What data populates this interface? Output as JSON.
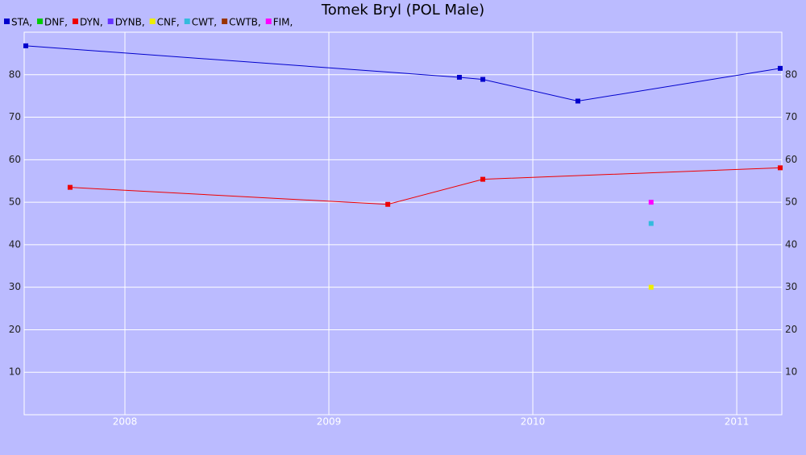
{
  "chart_data": {
    "type": "line",
    "title": "Tomek Bryl (POL Male)",
    "xlim": [
      2007.506,
      2011.221
    ],
    "xticks": [
      2008,
      2009,
      2010,
      2011
    ],
    "ylim": [
      0,
      90
    ],
    "yticks": [
      10,
      20,
      30,
      40,
      50,
      60,
      70,
      80
    ],
    "grid": true,
    "series": [
      {
        "name": "STA,",
        "color": "#0000cc",
        "x": [
          2007.514,
          2009.64,
          2009.755,
          2010.221,
          2011.213
        ],
        "values": [
          86.8,
          79.4,
          78.9,
          73.8,
          81.5
        ]
      },
      {
        "name": "DNF,",
        "color": "#00cc00",
        "x": [],
        "values": []
      },
      {
        "name": "DYN,",
        "color": "#ee0000",
        "x": [
          2007.731,
          2009.289,
          2009.755,
          2011.213
        ],
        "values": [
          53.5,
          49.5,
          55.4,
          58.1
        ]
      },
      {
        "name": "DYNB,",
        "color": "#6633ff",
        "x": [],
        "values": []
      },
      {
        "name": "CNF,",
        "color": "#eeee00",
        "x": [
          2010.58
        ],
        "values": [
          30
        ]
      },
      {
        "name": "CWT,",
        "color": "#33bbdd",
        "x": [
          2010.58
        ],
        "values": [
          45
        ]
      },
      {
        "name": "CWTB,",
        "color": "#993300",
        "x": [],
        "values": []
      },
      {
        "name": "FIM,",
        "color": "#ff00ff",
        "x": [
          2010.58
        ],
        "values": [
          50
        ]
      }
    ]
  }
}
